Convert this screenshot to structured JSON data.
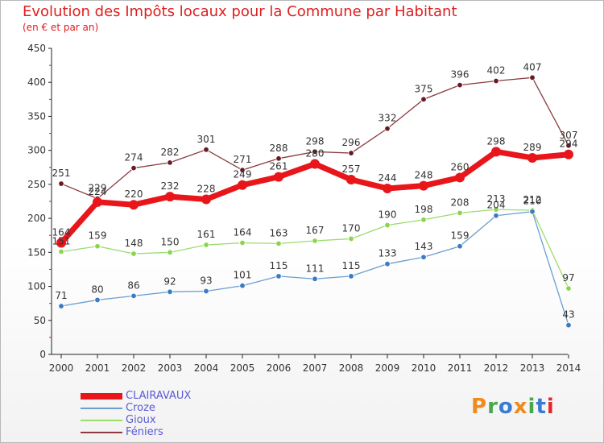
{
  "header": {
    "title": "Evolution des Impôts locaux pour la Commune par Habitant",
    "subtitle": "(en € et par an)"
  },
  "brand": {
    "text": "Proxiti",
    "colors": [
      "#f08a1c",
      "#49a84b",
      "#3a7bd5",
      "#f08a1c",
      "#49a84b",
      "#3a7bd5",
      "#e02a2a"
    ]
  },
  "chart_data": {
    "type": "line",
    "title": "Evolution des Impôts locaux pour la Commune par Habitant",
    "subtitle": "(en € et par an)",
    "xlabel": "",
    "ylabel": "",
    "ylim": [
      0,
      450
    ],
    "yticks": [
      0,
      50,
      100,
      150,
      200,
      250,
      300,
      350,
      400,
      450
    ],
    "grid": false,
    "legend_position": "bottom-left",
    "x": [
      "2000",
      "2001",
      "2002",
      "2003",
      "2004",
      "2005",
      "2006",
      "2007",
      "2008",
      "2009",
      "2010",
      "2011",
      "2012",
      "2013",
      "2014"
    ],
    "series": [
      {
        "name": "CLAIRAVAUX",
        "color": "#e8161b",
        "marker": "#e8161b",
        "thick": true,
        "values": [
          164,
          224,
          220,
          232,
          228,
          249,
          261,
          280,
          257,
          244,
          248,
          260,
          298,
          289,
          294
        ]
      },
      {
        "name": "Croze",
        "color": "#6a9ed0",
        "marker": "#3a7bc4",
        "thick": false,
        "values": [
          71,
          80,
          86,
          92,
          93,
          101,
          115,
          111,
          115,
          133,
          143,
          159,
          204,
          210,
          43
        ]
      },
      {
        "name": "Gioux",
        "color": "#9bdc6a",
        "marker": "#8bd44f",
        "thick": false,
        "values": [
          151,
          159,
          148,
          150,
          161,
          164,
          163,
          167,
          170,
          190,
          198,
          208,
          213,
          212,
          97
        ]
      },
      {
        "name": "Féniers",
        "color": "#8a3a3e",
        "marker": "#6a1a22",
        "thick": false,
        "values": [
          251,
          229,
          274,
          282,
          301,
          271,
          288,
          298,
          296,
          332,
          375,
          396,
          402,
          407,
          307
        ]
      }
    ]
  }
}
